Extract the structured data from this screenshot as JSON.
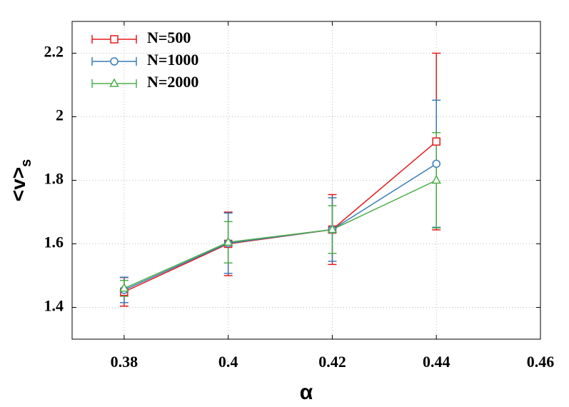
{
  "chart_data": {
    "type": "line",
    "x_label": "α",
    "y_label": "<v>",
    "y_label_sub": "s",
    "xlim": [
      0.37,
      0.46
    ],
    "xticks": [
      0.38,
      0.4,
      0.42,
      0.44,
      0.46
    ],
    "ylim": [
      1.3,
      2.3
    ],
    "yticks": [
      1.4,
      1.6,
      1.8,
      2,
      2.2
    ],
    "grid": true,
    "legend": "upper left",
    "x": [
      0.38,
      0.4,
      0.42,
      0.44
    ],
    "series": [
      {
        "name": "N=500",
        "color": "#e41a1c",
        "marker": "square",
        "values": [
          1.449,
          1.6,
          1.645,
          1.922
        ],
        "errors": [
          0.045,
          0.1,
          0.11,
          0.278
        ]
      },
      {
        "name": "N=1000",
        "color": "#377eb8",
        "marker": "circle",
        "values": [
          1.455,
          1.602,
          1.645,
          1.852
        ],
        "errors": [
          0.04,
          0.095,
          0.1,
          0.2
        ]
      },
      {
        "name": "N=2000",
        "color": "#4daf4a",
        "marker": "triangle",
        "values": [
          1.46,
          1.605,
          1.645,
          1.8
        ],
        "errors": [
          0.025,
          0.065,
          0.075,
          0.15
        ]
      }
    ]
  }
}
